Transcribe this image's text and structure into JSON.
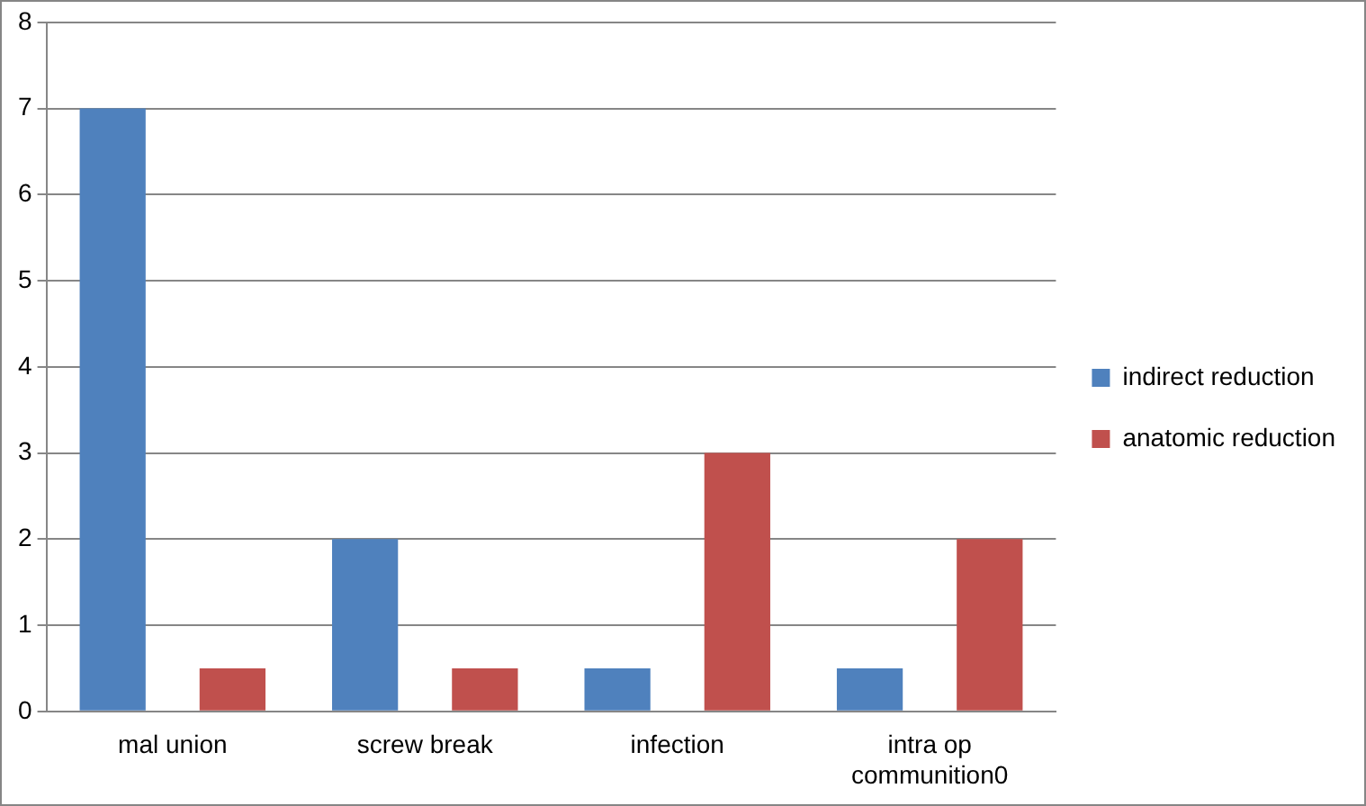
{
  "chart_data": {
    "type": "bar",
    "categories": [
      "mal union",
      "screw break",
      "infection",
      "intra op communition0"
    ],
    "series": [
      {
        "name": "indirect reduction",
        "color": "#4f81bd",
        "values": [
          7,
          2,
          0.5,
          0.5
        ]
      },
      {
        "name": "anatomic reduction",
        "color": "#c0504d",
        "values": [
          0.5,
          0.5,
          3,
          2
        ]
      }
    ],
    "ylim": [
      0,
      8
    ],
    "yticks": [
      0,
      1,
      2,
      3,
      4,
      5,
      6,
      7,
      8
    ],
    "grid": "y",
    "legend": "right"
  }
}
